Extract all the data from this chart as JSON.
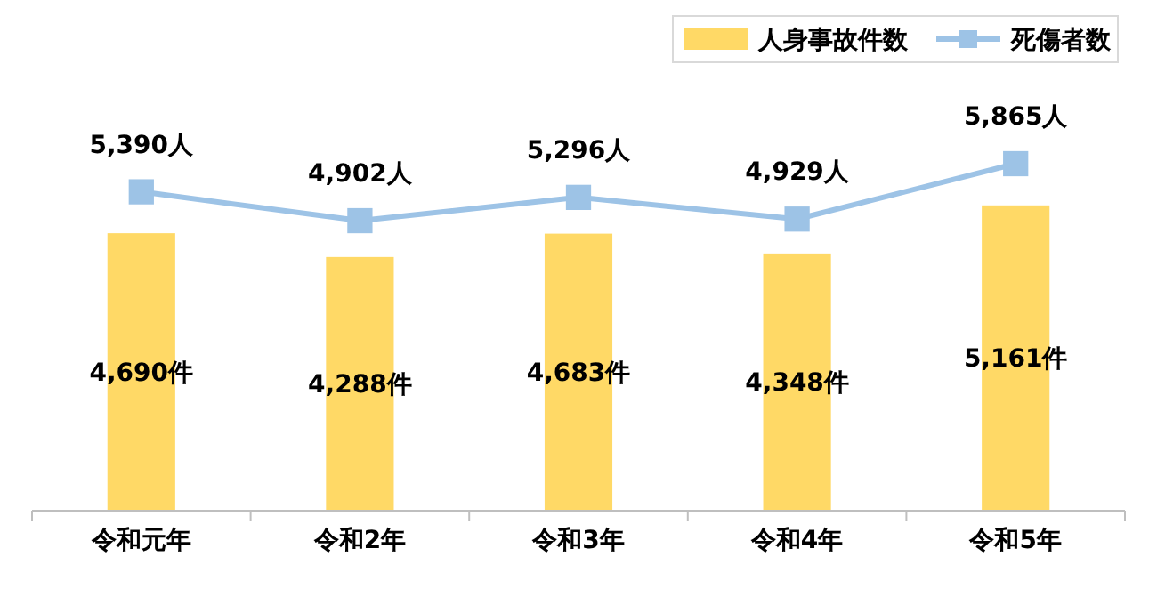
{
  "chart_data": {
    "type": "bar",
    "categories": [
      "令和元年",
      "令和2年",
      "令和3年",
      "令和4年",
      "令和5年"
    ],
    "legend": "top right",
    "marker": "square",
    "series": [
      {
        "name": "人身事故件数",
        "color": "#ffd966",
        "values": [
          4690,
          4288,
          4683,
          4348,
          5161
        ],
        "value_labels": [
          "4,690件",
          "4,288件",
          "4,683件",
          "4,348件",
          "5,161件"
        ]
      },
      {
        "name": "死傷者数",
        "type": "line",
        "color": "#9dc3e6",
        "values": [
          5390,
          4902,
          5296,
          4929,
          5865
        ],
        "value_labels": [
          "5,390人",
          "4,902人",
          "5,296人",
          "4,929人",
          "5,865人"
        ]
      }
    ]
  }
}
